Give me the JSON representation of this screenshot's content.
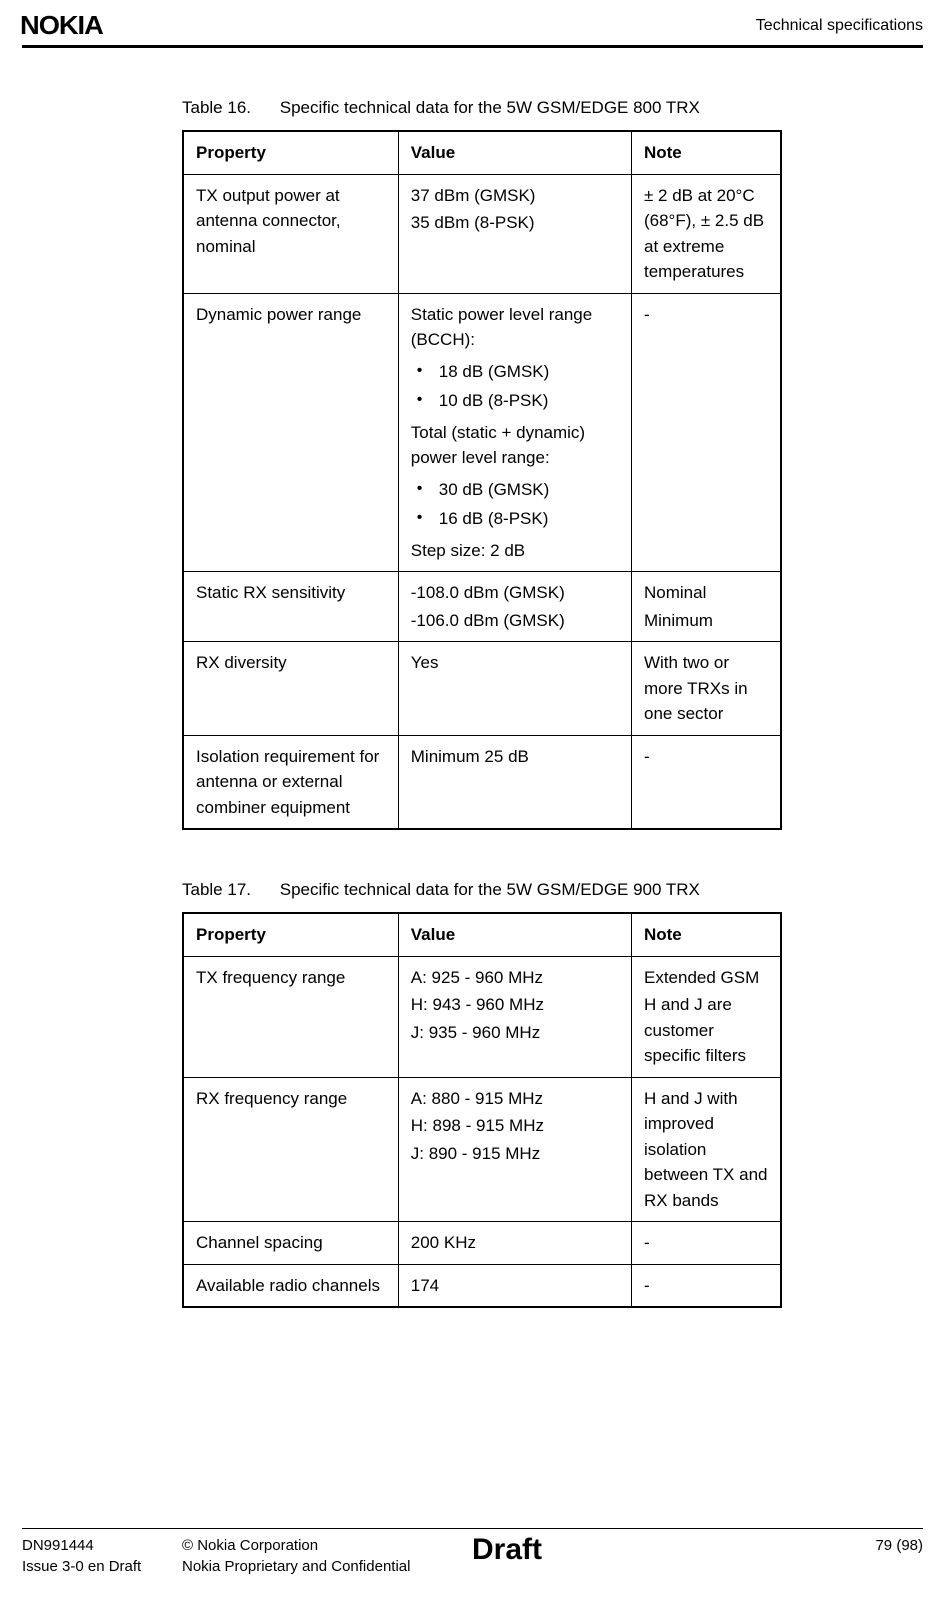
{
  "header": {
    "logo_text": "NOKIA",
    "section_title": "Technical specifications"
  },
  "table16": {
    "caption_num": "Table 16.",
    "caption_title": "Specific technical data for the 5W GSM/EDGE 800 TRX",
    "columns": [
      "Property",
      "Value",
      "Note"
    ],
    "rows": [
      {
        "property": "TX output power at antenna connector, nominal",
        "value_lines": [
          "37 dBm (GMSK)",
          "35 dBm (8-PSK)"
        ],
        "note": "± 2 dB at 20°C (68°F), ± 2.5 dB at extreme temperatures"
      },
      {
        "property": "Dynamic power range",
        "value_struct": {
          "pre1": "Static power level range (BCCH):",
          "bullets1": [
            "18 dB (GMSK)",
            "10 dB (8-PSK)"
          ],
          "pre2": "Total (static + dynamic) power level range:",
          "bullets2": [
            "30 dB (GMSK)",
            "16 dB (8-PSK)"
          ],
          "post": "Step size: 2 dB"
        },
        "note": "-"
      },
      {
        "property": "Static RX sensitivity",
        "value_lines": [
          "-108.0 dBm (GMSK)",
          "-106.0 dBm (GMSK)"
        ],
        "note_lines": [
          "Nominal",
          "Minimum"
        ]
      },
      {
        "property": "RX diversity",
        "value": "Yes",
        "note": "With two or more TRXs in one sector"
      },
      {
        "property": "Isolation requirement for antenna or external combiner equipment",
        "value": "Minimum 25 dB",
        "note": "-"
      }
    ]
  },
  "table17": {
    "caption_num": "Table 17.",
    "caption_title": "Specific technical data for the 5W GSM/EDGE 900 TRX",
    "columns": [
      "Property",
      "Value",
      "Note"
    ],
    "rows": [
      {
        "property": "TX frequency range",
        "value_lines": [
          "A: 925 - 960 MHz",
          "H: 943 - 960 MHz",
          "J: 935 - 960 MHz"
        ],
        "note_lines": [
          "Extended GSM",
          "H and J are customer specific filters"
        ]
      },
      {
        "property": "RX frequency range",
        "value_lines": [
          "A: 880 - 915 MHz",
          "H: 898 - 915 MHz",
          "J: 890 - 915 MHz"
        ],
        "note": "H and J with improved isolation between TX and RX bands"
      },
      {
        "property": "Channel spacing",
        "value": "200 KHz",
        "note": "-"
      },
      {
        "property": "Available radio channels",
        "value": "174",
        "note": "-"
      }
    ]
  },
  "footer": {
    "doc_id": "DN991444",
    "issue": "Issue 3-0 en Draft",
    "copyright": "© Nokia Corporation",
    "confidential": "Nokia Proprietary and Confidential",
    "watermark": "Draft",
    "page_num": "79 (98)"
  }
}
